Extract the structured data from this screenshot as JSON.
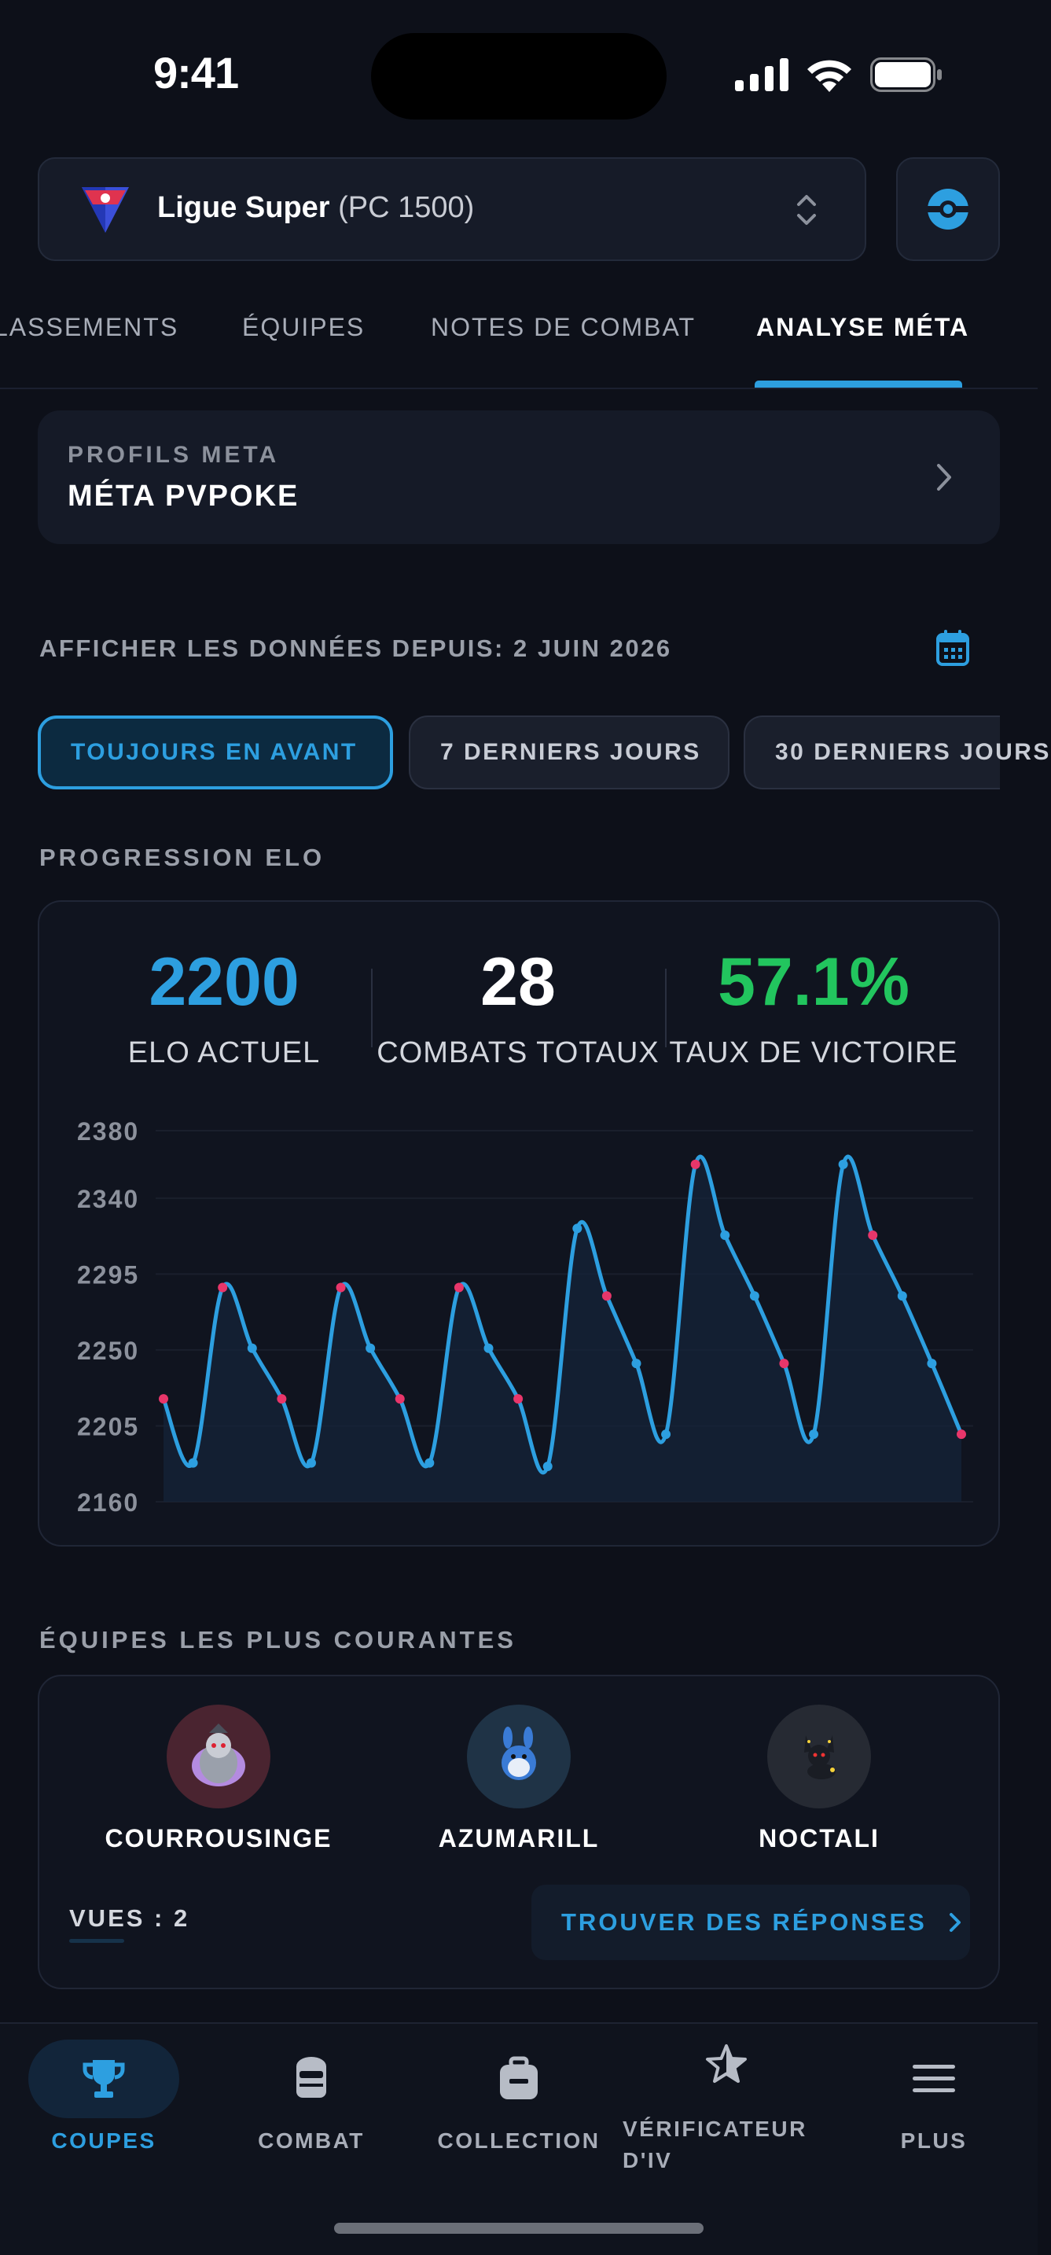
{
  "status": {
    "time": "9:41"
  },
  "league": {
    "name": "Ligue Super",
    "cp": "(PC 1500)"
  },
  "tabs": [
    {
      "label": "LASSEMENTS"
    },
    {
      "label": "ÉQUIPES"
    },
    {
      "label": "NOTES DE COMBAT"
    },
    {
      "label": "ANALYSE MÉTA",
      "active": true
    }
  ],
  "meta_profile": {
    "subtitle": "PROFILS META",
    "title": "MÉTA PVPOKE"
  },
  "date_filter": {
    "label": "AFFICHER LES DONNÉES DEPUIS: 2 JUIN 2026"
  },
  "ranges": [
    {
      "label": "TOUJOURS EN AVANT",
      "active": true
    },
    {
      "label": "7 DERNIERS JOURS"
    },
    {
      "label": "30 DERNIERS JOURS"
    }
  ],
  "progression": {
    "section_label": "PROGRESSION ELO",
    "stats": [
      {
        "value": "2200",
        "label": "ELO ACTUEL",
        "color": "#2d9fe0"
      },
      {
        "value": "28",
        "label": "COMBATS TOTAUX",
        "color": "#ffffff"
      },
      {
        "value": "57.1%",
        "label": "TAUX DE VICTOIRE",
        "color": "#22c55e"
      }
    ]
  },
  "chart_data": {
    "type": "line",
    "title": "",
    "xlabel": "",
    "ylabel": "",
    "ylim": [
      2160,
      2380
    ],
    "y_ticks": [
      2380,
      2340,
      2295,
      2250,
      2205,
      2160
    ],
    "series": [
      {
        "line_color": "#2d9fe0",
        "points": [
          {
            "x": 1,
            "y": 2221,
            "marker": "pink"
          },
          {
            "x": 2,
            "y": 2183,
            "marker": "blue"
          },
          {
            "x": 3,
            "y": 2287,
            "marker": "pink"
          },
          {
            "x": 4,
            "y": 2251,
            "marker": "blue"
          },
          {
            "x": 5,
            "y": 2221,
            "marker": "pink"
          },
          {
            "x": 6,
            "y": 2183,
            "marker": "blue"
          },
          {
            "x": 7,
            "y": 2287,
            "marker": "pink"
          },
          {
            "x": 8,
            "y": 2251,
            "marker": "blue"
          },
          {
            "x": 9,
            "y": 2221,
            "marker": "pink"
          },
          {
            "x": 10,
            "y": 2183,
            "marker": "blue"
          },
          {
            "x": 11,
            "y": 2287,
            "marker": "pink"
          },
          {
            "x": 12,
            "y": 2251,
            "marker": "blue"
          },
          {
            "x": 13,
            "y": 2221,
            "marker": "pink"
          },
          {
            "x": 14,
            "y": 2181,
            "marker": "blue"
          },
          {
            "x": 15,
            "y": 2322,
            "marker": "blue"
          },
          {
            "x": 16,
            "y": 2282,
            "marker": "pink"
          },
          {
            "x": 17,
            "y": 2242,
            "marker": "blue"
          },
          {
            "x": 18,
            "y": 2200,
            "marker": "blue"
          },
          {
            "x": 19,
            "y": 2360,
            "marker": "pink"
          },
          {
            "x": 20,
            "y": 2318,
            "marker": "blue"
          },
          {
            "x": 21,
            "y": 2282,
            "marker": "blue"
          },
          {
            "x": 22,
            "y": 2242,
            "marker": "pink"
          },
          {
            "x": 23,
            "y": 2200,
            "marker": "blue"
          },
          {
            "x": 24,
            "y": 2360,
            "marker": "blue"
          },
          {
            "x": 25,
            "y": 2318,
            "marker": "pink"
          },
          {
            "x": 26,
            "y": 2282,
            "marker": "blue"
          },
          {
            "x": 27,
            "y": 2242,
            "marker": "blue"
          },
          {
            "x": 28,
            "y": 2200,
            "marker": "pink"
          }
        ]
      }
    ],
    "grid": true,
    "legend": "none"
  },
  "teams": {
    "section_label": "ÉQUIPES LES PLUS COURANTES",
    "members": [
      {
        "name": "COURROUSINGE",
        "avatar_bg": "#4a2430",
        "icon": "courrousinge-sprite-icon"
      },
      {
        "name": "AZUMARILL",
        "avatar_bg": "#1f3346",
        "icon": "azumarill-sprite-icon"
      },
      {
        "name": "NOCTALI",
        "avatar_bg": "#262a33",
        "icon": "noctali-sprite-icon"
      }
    ],
    "views": "VUES : 2",
    "find_label": "TROUVER DES RÉPONSES"
  },
  "nav": [
    {
      "label": "COUPES",
      "icon": "trophy-icon",
      "active": true
    },
    {
      "label": "COMBAT",
      "icon": "helmet-icon"
    },
    {
      "label": "COLLECTION",
      "icon": "backpack-icon"
    },
    {
      "label": "VÉRIFICATEUR D'IV",
      "icon": "star-icon"
    },
    {
      "label": "PLUS",
      "icon": "menu-icon"
    }
  ]
}
